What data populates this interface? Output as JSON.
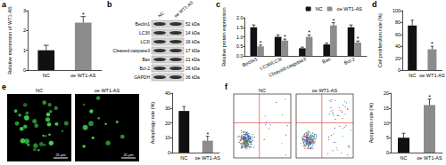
{
  "chart_data": [
    {
      "type": "bar",
      "y_label": "Relative expression of WT1-AS",
      "categories": [
        "NC",
        "oe WT1-AS"
      ],
      "values": [
        1.0,
        2.4
      ],
      "errors": [
        0.25,
        0.3
      ],
      "colors": [
        "#111111",
        "#8c8c8c"
      ],
      "ylim": [
        0,
        3
      ],
      "yticks": [
        0,
        1,
        2,
        3
      ],
      "grid": false,
      "annotations": [
        {
          "category": "oe WT1-AS",
          "text": "*"
        }
      ]
    },
    {
      "type": "bar",
      "y_label": "Relative protein expression",
      "categories": [
        "Beclin1",
        "LC3II/LC3I",
        "Cleaved-caspase3",
        "Bax",
        "Bcl-2"
      ],
      "series": [
        {
          "name": "NC",
          "color": "#111111",
          "values": [
            1.5,
            1.0,
            0.4,
            0.6,
            1.5
          ],
          "errors": [
            0.12,
            0.1,
            0.06,
            0.07,
            0.12
          ]
        },
        {
          "name": "oe WT1-AS",
          "color": "#8c8c8c",
          "values": [
            0.5,
            0.8,
            1.0,
            1.6,
            0.7
          ],
          "errors": [
            0.07,
            0.08,
            0.1,
            0.14,
            0.08
          ]
        }
      ],
      "ylim": [
        0,
        2
      ],
      "yticks": [
        {
          "value": 0,
          "label": "0.0"
        },
        {
          "value": 0.5,
          "label": "0.5"
        },
        {
          "value": 1,
          "label": "1.0"
        },
        {
          "value": 1.5,
          "label": "1.5"
        },
        {
          "value": 2,
          "label": "2.0"
        }
      ],
      "grid": false,
      "legend": "upper right",
      "annotations": [
        {
          "series": "oe WT1-AS",
          "text": "*"
        }
      ]
    },
    {
      "type": "bar",
      "y_label": "Cell proliferation rate (%)",
      "categories": [
        "NC",
        "oe WT1-AS"
      ],
      "values": [
        75,
        35
      ],
      "errors": [
        9,
        5
      ],
      "colors": [
        "#111111",
        "#8c8c8c"
      ],
      "ylim": [
        0,
        100
      ],
      "yticks": [
        0,
        20,
        40,
        60,
        80,
        100
      ],
      "grid": false,
      "annotations": [
        {
          "category": "oe WT1-AS",
          "text": "*"
        }
      ]
    },
    {
      "type": "bar",
      "y_label": "Autophagy rate (%)",
      "categories": [
        "NC",
        "oe WT1-AS"
      ],
      "values": [
        28,
        8
      ],
      "errors": [
        3,
        3
      ],
      "colors": [
        "#111111",
        "#8c8c8c"
      ],
      "ylim": [
        0,
        40
      ],
      "yticks": [
        0,
        10,
        20,
        30,
        40
      ],
      "grid": false,
      "annotations": [
        {
          "category": "oe WT1-AS",
          "text": "*"
        }
      ]
    },
    {
      "type": "bar",
      "y_label": "Apoptosis rate (%)",
      "categories": [
        "NC",
        "oe WT1-AS"
      ],
      "values": [
        5,
        16
      ],
      "errors": [
        1.5,
        2
      ],
      "colors": [
        "#111111",
        "#8c8c8c"
      ],
      "ylim": [
        0,
        20
      ],
      "yticks": [
        0,
        5,
        10,
        15,
        20
      ],
      "grid": false,
      "annotations": [
        {
          "category": "oe WT1-AS",
          "text": "*"
        }
      ]
    }
  ],
  "figure": {
    "panel_labels": [
      "a",
      "b",
      "c",
      "d",
      "e",
      "f"
    ],
    "blot": {
      "columns": [
        "NC",
        "oe WT1-AS"
      ],
      "rows": [
        {
          "protein": "Beclin1",
          "size": "52 kDa"
        },
        {
          "protein": "LC3II",
          "size": "14 kDa"
        },
        {
          "protein": "LC3I",
          "size": "16 kDa"
        },
        {
          "protein": "Cleaved-caspase3",
          "size": "17 kDa"
        },
        {
          "protein": "Bax",
          "size": "21 kDa"
        },
        {
          "protein": "Bcl-2",
          "size": "26 kDa"
        },
        {
          "protein": "GAPDH",
          "size": "36 kDa"
        }
      ]
    },
    "micrographs": {
      "panels": [
        "NC",
        "oe WT1-AS"
      ],
      "scale_bar": "25 μm"
    },
    "flow": {
      "panels": [
        "NC",
        "oe WT1-AS"
      ]
    }
  }
}
